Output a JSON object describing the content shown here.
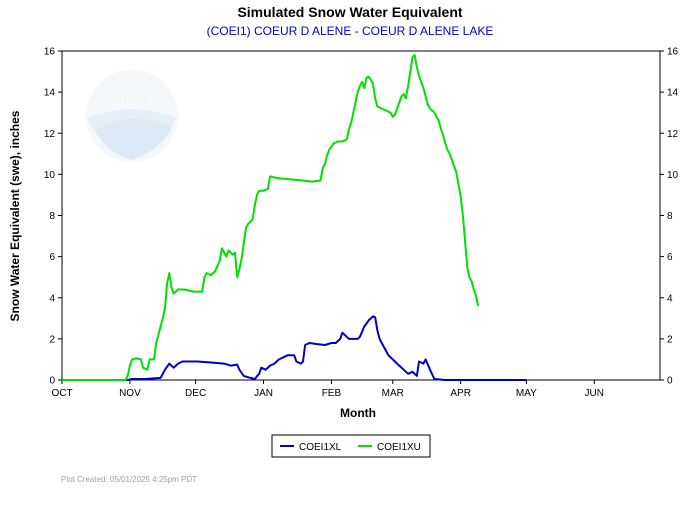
{
  "chart_data": {
    "type": "line",
    "title": "Simulated Snow Water Equivalent",
    "subtitle": "(COEI1) COEUR D ALENE - COEUR D ALENE LAKE",
    "xlabel": "Month",
    "ylabel": "Snow Water Equivalent (swe),  inches",
    "ylim": [
      0,
      16
    ],
    "yticks": [
      "0",
      "2",
      "4",
      "6",
      "8",
      "10",
      "12",
      "14",
      "16"
    ],
    "x_domain_days": [
      0,
      273
    ],
    "month_ticks": [
      {
        "label": "OCT",
        "day": 0
      },
      {
        "label": "NOV",
        "day": 31
      },
      {
        "label": "DEC",
        "day": 61
      },
      {
        "label": "JAN",
        "day": 92
      },
      {
        "label": "FEB",
        "day": 123
      },
      {
        "label": "MAR",
        "day": 151
      },
      {
        "label": "APR",
        "day": 182
      },
      {
        "label": "MAY",
        "day": 212
      },
      {
        "label": "JUN",
        "day": 243
      }
    ],
    "grid": false,
    "legend_position": "bottom-center",
    "series": [
      {
        "name": "COEI1XL",
        "color": "#0000cc",
        "points": [
          [
            0,
            0
          ],
          [
            30,
            0
          ],
          [
            32,
            0.05
          ],
          [
            38,
            0.05
          ],
          [
            45,
            0.1
          ],
          [
            47,
            0.5
          ],
          [
            49,
            0.8
          ],
          [
            51,
            0.6
          ],
          [
            53,
            0.8
          ],
          [
            55,
            0.9
          ],
          [
            58,
            0.9
          ],
          [
            62,
            0.9
          ],
          [
            68,
            0.85
          ],
          [
            74,
            0.8
          ],
          [
            77,
            0.7
          ],
          [
            80,
            0.75
          ],
          [
            81,
            0.5
          ],
          [
            83,
            0.2
          ],
          [
            86,
            0.1
          ],
          [
            88,
            0.05
          ],
          [
            90,
            0.3
          ],
          [
            91,
            0.6
          ],
          [
            93,
            0.5
          ],
          [
            95,
            0.7
          ],
          [
            97,
            0.8
          ],
          [
            99,
            1.0
          ],
          [
            101,
            1.1
          ],
          [
            103,
            1.2
          ],
          [
            106,
            1.2
          ],
          [
            107,
            0.9
          ],
          [
            109,
            0.8
          ],
          [
            110,
            0.9
          ],
          [
            111,
            1.7
          ],
          [
            113,
            1.8
          ],
          [
            116,
            1.75
          ],
          [
            120,
            1.7
          ],
          [
            123,
            1.8
          ],
          [
            125,
            1.8
          ],
          [
            127,
            2.0
          ],
          [
            128,
            2.3
          ],
          [
            129,
            2.2
          ],
          [
            131,
            2.0
          ],
          [
            133,
            2.0
          ],
          [
            135,
            2.0
          ],
          [
            136,
            2.1
          ],
          [
            138,
            2.6
          ],
          [
            140,
            2.9
          ],
          [
            142,
            3.1
          ],
          [
            143,
            3.05
          ],
          [
            144,
            2.4
          ],
          [
            145,
            2.0
          ],
          [
            147,
            1.6
          ],
          [
            149,
            1.2
          ],
          [
            151,
            1.0
          ],
          [
            153,
            0.8
          ],
          [
            156,
            0.5
          ],
          [
            158,
            0.3
          ],
          [
            160,
            0.4
          ],
          [
            162,
            0.2
          ],
          [
            163,
            0.9
          ],
          [
            165,
            0.8
          ],
          [
            166,
            1.0
          ],
          [
            168,
            0.5
          ],
          [
            170,
            0.05
          ],
          [
            175,
            0
          ],
          [
            212,
            0
          ]
        ]
      },
      {
        "name": "COEI1XU",
        "color": "#00e000",
        "points": [
          [
            0,
            0
          ],
          [
            29,
            0
          ],
          [
            30,
            0.2
          ],
          [
            31,
            0.7
          ],
          [
            32,
            1.0
          ],
          [
            34,
            1.05
          ],
          [
            36,
            1.0
          ],
          [
            37,
            0.6
          ],
          [
            39,
            0.5
          ],
          [
            40,
            1.0
          ],
          [
            42,
            1.0
          ],
          [
            43,
            1.8
          ],
          [
            45,
            2.6
          ],
          [
            46,
            3.0
          ],
          [
            47,
            3.5
          ],
          [
            48,
            4.7
          ],
          [
            49,
            5.2
          ],
          [
            50,
            4.5
          ],
          [
            51,
            4.2
          ],
          [
            53,
            4.4
          ],
          [
            56,
            4.4
          ],
          [
            60,
            4.3
          ],
          [
            64,
            4.3
          ],
          [
            65,
            5.0
          ],
          [
            66,
            5.2
          ],
          [
            68,
            5.1
          ],
          [
            70,
            5.3
          ],
          [
            72,
            5.8
          ],
          [
            73,
            6.4
          ],
          [
            74,
            6.2
          ],
          [
            75,
            6.0
          ],
          [
            76,
            6.3
          ],
          [
            78,
            6.1
          ],
          [
            79,
            6.2
          ],
          [
            80,
            5.0
          ],
          [
            81,
            5.4
          ],
          [
            82,
            5.9
          ],
          [
            84,
            7.4
          ],
          [
            85,
            7.6
          ],
          [
            86,
            7.7
          ],
          [
            87,
            7.8
          ],
          [
            88,
            8.5
          ],
          [
            89,
            9.0
          ],
          [
            90,
            9.2
          ],
          [
            92,
            9.2
          ],
          [
            94,
            9.3
          ],
          [
            95,
            9.9
          ],
          [
            97,
            9.85
          ],
          [
            100,
            9.8
          ],
          [
            105,
            9.75
          ],
          [
            110,
            9.7
          ],
          [
            114,
            9.65
          ],
          [
            118,
            9.7
          ],
          [
            119,
            10.3
          ],
          [
            120,
            10.5
          ],
          [
            121,
            10.9
          ],
          [
            122,
            11.2
          ],
          [
            124,
            11.5
          ],
          [
            126,
            11.6
          ],
          [
            128,
            11.6
          ],
          [
            130,
            11.7
          ],
          [
            131,
            12.2
          ],
          [
            132,
            12.5
          ],
          [
            133,
            13.0
          ],
          [
            134,
            13.5
          ],
          [
            135,
            14.0
          ],
          [
            136,
            14.3
          ],
          [
            137,
            14.5
          ],
          [
            138,
            14.2
          ],
          [
            139,
            14.7
          ],
          [
            140,
            14.75
          ],
          [
            141,
            14.6
          ],
          [
            142,
            14.4
          ],
          [
            143,
            13.7
          ],
          [
            144,
            13.3
          ],
          [
            146,
            13.2
          ],
          [
            148,
            13.1
          ],
          [
            150,
            13.0
          ],
          [
            151,
            12.8
          ],
          [
            152,
            12.9
          ],
          [
            153,
            13.2
          ],
          [
            154,
            13.5
          ],
          [
            155,
            13.8
          ],
          [
            156,
            13.9
          ],
          [
            157,
            13.7
          ],
          [
            158,
            14.3
          ],
          [
            159,
            15.0
          ],
          [
            160,
            15.7
          ],
          [
            161,
            15.8
          ],
          [
            162,
            15.2
          ],
          [
            163,
            14.8
          ],
          [
            164,
            14.5
          ],
          [
            165,
            14.2
          ],
          [
            166,
            13.8
          ],
          [
            167,
            13.4
          ],
          [
            168,
            13.2
          ],
          [
            170,
            13.0
          ],
          [
            172,
            12.6
          ],
          [
            173,
            12.2
          ],
          [
            174,
            11.9
          ],
          [
            175,
            11.5
          ],
          [
            176,
            11.2
          ],
          [
            177,
            11.0
          ],
          [
            178,
            10.7
          ],
          [
            179,
            10.4
          ],
          [
            180,
            10.1
          ],
          [
            181,
            9.5
          ],
          [
            182,
            8.9
          ],
          [
            183,
            8.0
          ],
          [
            184,
            6.8
          ],
          [
            185,
            5.5
          ],
          [
            186,
            5.0
          ],
          [
            187,
            4.8
          ],
          [
            188,
            4.4
          ],
          [
            189,
            4.1
          ],
          [
            190,
            3.6
          ]
        ]
      }
    ],
    "footer": "Plot Created: 05/01/2025 4:25pm PDT",
    "watermark": "NOAA"
  }
}
